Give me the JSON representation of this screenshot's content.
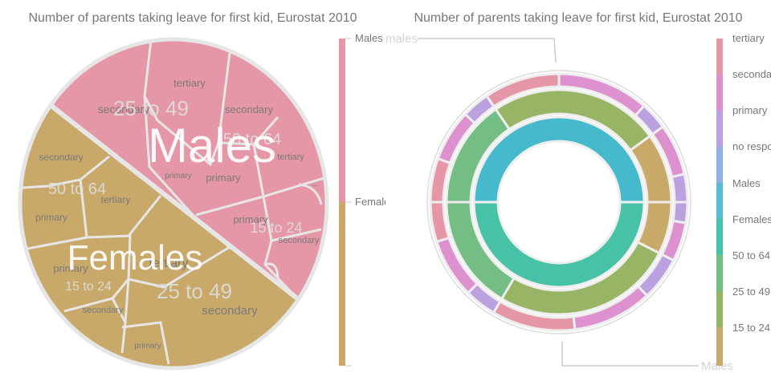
{
  "chart_data": [
    {
      "type": "voronoi-treemap",
      "title": "Number of parents taking leave for first kid, Eurostat 2010",
      "groups": [
        {
          "name": "Males",
          "color": "#e597a8",
          "age_groups": [
            {
              "name": "25 to 49",
              "education": [
                "secondary",
                "tertiary",
                "primary"
              ]
            },
            {
              "name": "50 to 64",
              "education": [
                "secondary",
                "tertiary",
                "primary"
              ]
            },
            {
              "name": "15 to 24",
              "education": [
                "primary",
                "secondary",
                "—"
              ]
            }
          ]
        },
        {
          "name": "Females",
          "color": "#c9a96a",
          "age_groups": [
            {
              "name": "50 to 64",
              "education": [
                "secondary",
                "tertiary",
                "primary"
              ]
            },
            {
              "name": "15 to 24",
              "education": [
                "primary",
                "secondary"
              ]
            },
            {
              "name": "25 to 49",
              "education": [
                "tertiary",
                "secondary",
                "primary"
              ]
            }
          ]
        }
      ],
      "legend": {
        "position": "right",
        "items": [
          "Males",
          "Females"
        ]
      }
    },
    {
      "type": "sunburst",
      "title": "Number of parents taking leave for first kid, Eurostat 2010",
      "callouts": [
        "Females",
        "Males"
      ],
      "legend": {
        "position": "right",
        "items": [
          {
            "label": "tertiary",
            "color": "#e597a8"
          },
          {
            "label": "secondary",
            "color": "#dd92cf"
          },
          {
            "label": "primary",
            "color": "#bca1e0"
          },
          {
            "label": "no response",
            "color": "#93b0e2"
          },
          {
            "label": "Males",
            "color": "#5bbbd1"
          },
          {
            "label": "Females",
            "color": "#47c2a6"
          },
          {
            "label": "50 to 64",
            "color": "#74bd84"
          },
          {
            "label": "25 to 49",
            "color": "#98b566"
          },
          {
            "label": "15 to 24",
            "color": "#c9a96a"
          }
        ]
      },
      "inner_ring": [
        {
          "name": "Females",
          "color": "#47c2a6",
          "start": 0,
          "end": 0.5
        },
        {
          "name": "Males",
          "color": "#47b9cc",
          "start": 0.5,
          "end": 1
        }
      ],
      "middle_ring": [
        {
          "name": "15 to 24",
          "color": "#c9a96a",
          "start": 0.0,
          "end": 0.075
        },
        {
          "name": "25 to 49",
          "color": "#98b566",
          "start": 0.075,
          "end": 0.335
        },
        {
          "name": "50 to 64",
          "color": "#74bd84",
          "start": 0.335,
          "end": 0.5
        },
        {
          "name": "50 to 64",
          "color": "#74bd84",
          "start": 0.5,
          "end": 0.655
        },
        {
          "name": "25 to 49",
          "color": "#98b566",
          "start": 0.655,
          "end": 0.9
        },
        {
          "name": "15 to 24",
          "color": "#c9a96a",
          "start": 0.9,
          "end": 1.0
        }
      ],
      "outer_ring": [
        {
          "name": "primary",
          "color": "#bca1e0",
          "start": 0.0,
          "end": 0.026
        },
        {
          "name": "secondary",
          "color": "#dd92cf",
          "start": 0.026,
          "end": 0.075
        },
        {
          "name": "primary",
          "color": "#bca1e0",
          "start": 0.075,
          "end": 0.13
        },
        {
          "name": "secondary",
          "color": "#dd92cf",
          "start": 0.13,
          "end": 0.23
        },
        {
          "name": "tertiary",
          "color": "#e597a8",
          "start": 0.23,
          "end": 0.335
        },
        {
          "name": "primary",
          "color": "#bca1e0",
          "start": 0.335,
          "end": 0.375
        },
        {
          "name": "secondary",
          "color": "#dd92cf",
          "start": 0.375,
          "end": 0.45
        },
        {
          "name": "tertiary",
          "color": "#e597a8",
          "start": 0.45,
          "end": 0.5
        },
        {
          "name": "tertiary",
          "color": "#e597a8",
          "start": 0.5,
          "end": 0.555
        },
        {
          "name": "secondary",
          "color": "#dd92cf",
          "start": 0.555,
          "end": 0.62
        },
        {
          "name": "primary",
          "color": "#bca1e0",
          "start": 0.62,
          "end": 0.655
        },
        {
          "name": "tertiary",
          "color": "#e597a8",
          "start": 0.655,
          "end": 0.75
        },
        {
          "name": "secondary",
          "color": "#dd92cf",
          "start": 0.75,
          "end": 0.865
        },
        {
          "name": "primary",
          "color": "#bca1e0",
          "start": 0.865,
          "end": 0.9
        },
        {
          "name": "secondary",
          "color": "#dd92cf",
          "start": 0.9,
          "end": 0.965
        },
        {
          "name": "primary",
          "color": "#bca1e0",
          "start": 0.965,
          "end": 1.0
        }
      ]
    }
  ]
}
